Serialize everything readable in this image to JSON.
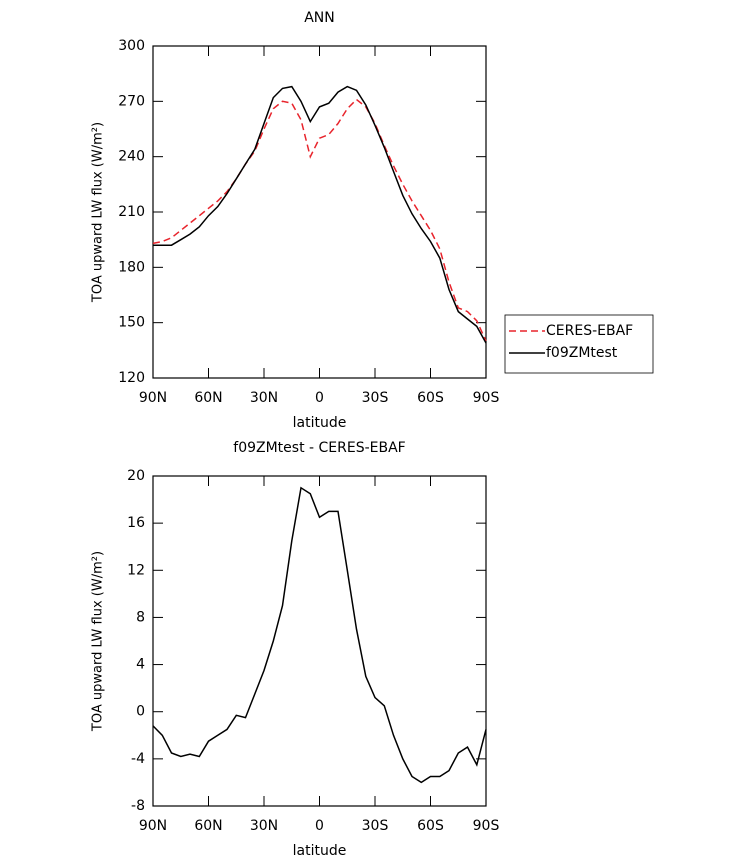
{
  "chart_data": [
    {
      "type": "line",
      "title": "ANN",
      "xlabel": "latitude",
      "ylabel": "TOA upward LW flux (W/m²)",
      "x": [
        90,
        85,
        80,
        75,
        70,
        65,
        60,
        55,
        50,
        45,
        40,
        35,
        30,
        25,
        20,
        15,
        10,
        5,
        0,
        -5,
        -10,
        -15,
        -20,
        -25,
        -30,
        -35,
        -40,
        -45,
        -50,
        -55,
        -60,
        -65,
        -70,
        -75,
        -80,
        -85,
        -90
      ],
      "series": [
        {
          "name": "CERES-EBAF",
          "color": "#e8242c",
          "style": "dashed",
          "values": [
            193,
            194,
            196,
            200,
            204,
            208,
            212,
            216,
            221,
            228,
            236,
            243,
            255,
            266,
            270,
            269,
            260,
            240,
            250,
            252,
            258,
            266,
            271,
            267,
            258,
            246,
            235,
            225,
            216,
            208,
            200,
            190,
            172,
            158,
            156,
            151,
            140
          ]
        },
        {
          "name": "f09ZMtest",
          "color": "#000000",
          "style": "solid",
          "values": [
            192,
            192,
            192,
            195,
            198,
            202,
            208,
            213,
            220,
            228,
            236,
            244,
            258,
            272,
            277,
            278,
            270,
            259,
            267,
            269,
            275,
            278,
            276,
            268,
            257,
            245,
            232,
            219,
            209,
            201,
            194,
            185,
            168,
            156,
            152,
            148,
            139
          ]
        }
      ],
      "xlim": [
        90,
        -90
      ],
      "xticks": [
        {
          "value": 90,
          "label": "90N"
        },
        {
          "value": 60,
          "label": "60N"
        },
        {
          "value": 30,
          "label": "30N"
        },
        0,
        {
          "value": -30,
          "label": "30S"
        },
        {
          "value": -60,
          "label": "60S"
        },
        {
          "value": -90,
          "label": "90S"
        }
      ],
      "ylim": [
        120,
        300
      ],
      "yticks": [
        120,
        150,
        180,
        210,
        240,
        270,
        300
      ],
      "legend": "outside-right"
    },
    {
      "type": "line",
      "title": "f09ZMtest - CERES-EBAF",
      "xlabel": "latitude",
      "ylabel": "TOA upward LW flux (W/m²)",
      "x": [
        90,
        85,
        80,
        75,
        70,
        65,
        60,
        55,
        50,
        45,
        40,
        35,
        30,
        25,
        20,
        15,
        10,
        5,
        0,
        -5,
        -10,
        -15,
        -20,
        -25,
        -30,
        -35,
        -40,
        -45,
        -50,
        -55,
        -60,
        -65,
        -70,
        -75,
        -80,
        -85,
        -90
      ],
      "series": [
        {
          "color": "#000000",
          "style": "solid",
          "values": [
            -1.2,
            -2,
            -3.5,
            -3.8,
            -3.6,
            -3.8,
            -2.5,
            -2,
            -1.5,
            -0.3,
            -0.5,
            1.5,
            3.5,
            6,
            9,
            14.5,
            19,
            18.5,
            16.5,
            17,
            17,
            12,
            7,
            3,
            1.2,
            0.5,
            -2,
            -4,
            -5.5,
            -6,
            -5.5,
            -5.5,
            -5,
            -3.5,
            -3,
            -4.5,
            -1.5
          ]
        }
      ],
      "xlim": [
        90,
        -90
      ],
      "xticks": [
        {
          "value": 90,
          "label": "90N"
        },
        {
          "value": 60,
          "label": "60N"
        },
        {
          "value": 30,
          "label": "30N"
        },
        0,
        {
          "value": -30,
          "label": "30S"
        },
        {
          "value": -60,
          "label": "60S"
        },
        {
          "value": -90,
          "label": "90S"
        }
      ],
      "ylim": [
        -8,
        20
      ],
      "yticks": [
        -8,
        -4,
        0,
        4,
        8,
        12,
        16,
        20
      ]
    }
  ]
}
